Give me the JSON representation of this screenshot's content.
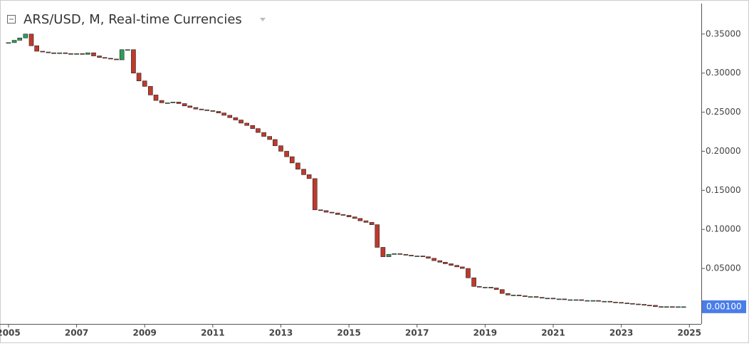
{
  "chart_data": {
    "type": "candlestick",
    "title": "ARS/USD, M, Real-time Currencies",
    "x": [
      2005.0,
      2005.17,
      2005.33,
      2005.5,
      2005.67,
      2005.83,
      2006.0,
      2006.17,
      2006.33,
      2006.5,
      2006.67,
      2006.83,
      2007.0,
      2007.17,
      2007.33,
      2007.5,
      2007.67,
      2007.83,
      2008.0,
      2008.17,
      2008.33,
      2008.5,
      2008.67,
      2008.83,
      2009.0,
      2009.17,
      2009.33,
      2009.5,
      2009.67,
      2009.83,
      2010.0,
      2010.17,
      2010.33,
      2010.5,
      2010.67,
      2010.83,
      2011.0,
      2011.17,
      2011.33,
      2011.5,
      2011.67,
      2011.83,
      2012.0,
      2012.17,
      2012.33,
      2012.5,
      2012.67,
      2012.83,
      2013.0,
      2013.17,
      2013.33,
      2013.5,
      2013.67,
      2013.83,
      2014.0,
      2014.17,
      2014.33,
      2014.5,
      2014.67,
      2014.83,
      2015.0,
      2015.17,
      2015.33,
      2015.5,
      2015.67,
      2015.83,
      2016.0,
      2016.17,
      2016.33,
      2016.5,
      2016.67,
      2016.83,
      2017.0,
      2017.17,
      2017.33,
      2017.5,
      2017.67,
      2017.83,
      2018.0,
      2018.17,
      2018.33,
      2018.5,
      2018.67,
      2018.83,
      2019.0,
      2019.17,
      2019.33,
      2019.5,
      2019.67,
      2019.83,
      2020.0,
      2020.17,
      2020.33,
      2020.5,
      2020.67,
      2020.83,
      2021.0,
      2021.17,
      2021.33,
      2021.5,
      2021.67,
      2021.83,
      2022.0,
      2022.17,
      2022.33,
      2022.5,
      2022.67,
      2022.83,
      2023.0,
      2023.17,
      2023.33,
      2023.5,
      2023.67,
      2023.83,
      2024.0,
      2024.17,
      2024.33,
      2024.5,
      2024.67,
      2024.83
    ],
    "series": [
      {
        "close": [
          0.339,
          0.342,
          0.345,
          0.35,
          0.335,
          0.328,
          0.327,
          0.326,
          0.325,
          0.326,
          0.325,
          0.324,
          0.325,
          0.324,
          0.326,
          0.322,
          0.32,
          0.319,
          0.318,
          0.317,
          0.33,
          0.33,
          0.3,
          0.29,
          0.283,
          0.272,
          0.265,
          0.262,
          0.262,
          0.263,
          0.261,
          0.258,
          0.256,
          0.254,
          0.253,
          0.252,
          0.251,
          0.249,
          0.246,
          0.243,
          0.24,
          0.236,
          0.233,
          0.229,
          0.224,
          0.219,
          0.215,
          0.207,
          0.2,
          0.193,
          0.185,
          0.177,
          0.17,
          0.165,
          0.125,
          0.124,
          0.122,
          0.121,
          0.119,
          0.118,
          0.116,
          0.114,
          0.111,
          0.109,
          0.106,
          0.077,
          0.065,
          0.068,
          0.069,
          0.068,
          0.067,
          0.066,
          0.066,
          0.065,
          0.063,
          0.06,
          0.058,
          0.056,
          0.054,
          0.052,
          0.05,
          0.038,
          0.027,
          0.026,
          0.026,
          0.025,
          0.023,
          0.018,
          0.016,
          0.016,
          0.015,
          0.014,
          0.014,
          0.013,
          0.012,
          0.012,
          0.011,
          0.011,
          0.01,
          0.01,
          0.01,
          0.009,
          0.009,
          0.009,
          0.008,
          0.008,
          0.007,
          0.0065,
          0.0058,
          0.0052,
          0.0045,
          0.004,
          0.003,
          0.0028,
          0.0012,
          0.0011,
          0.0011,
          0.001,
          0.001,
          0.001
        ],
        "up_color": "#2e9e5b",
        "down_color": "#c0392b"
      }
    ],
    "xlim": [
      2004.75,
      2025.35
    ],
    "xticks": [
      2005,
      2007,
      2009,
      2011,
      2013,
      2015,
      2017,
      2019,
      2021,
      2023,
      2025
    ],
    "ylim": [
      -0.021,
      0.389
    ],
    "yticks": [
      {
        "value": 0.35,
        "label": "0.35000"
      },
      {
        "value": 0.3,
        "label": "0.30000"
      },
      {
        "value": 0.25,
        "label": "0.25000"
      },
      {
        "value": 0.2,
        "label": "0.20000"
      },
      {
        "value": 0.15,
        "label": "0.15000"
      },
      {
        "value": 0.1,
        "label": "0.10000"
      },
      {
        "value": 0.05,
        "label": "0.05000"
      }
    ],
    "last_label": {
      "value": 0.001,
      "label": "0.00100"
    }
  }
}
